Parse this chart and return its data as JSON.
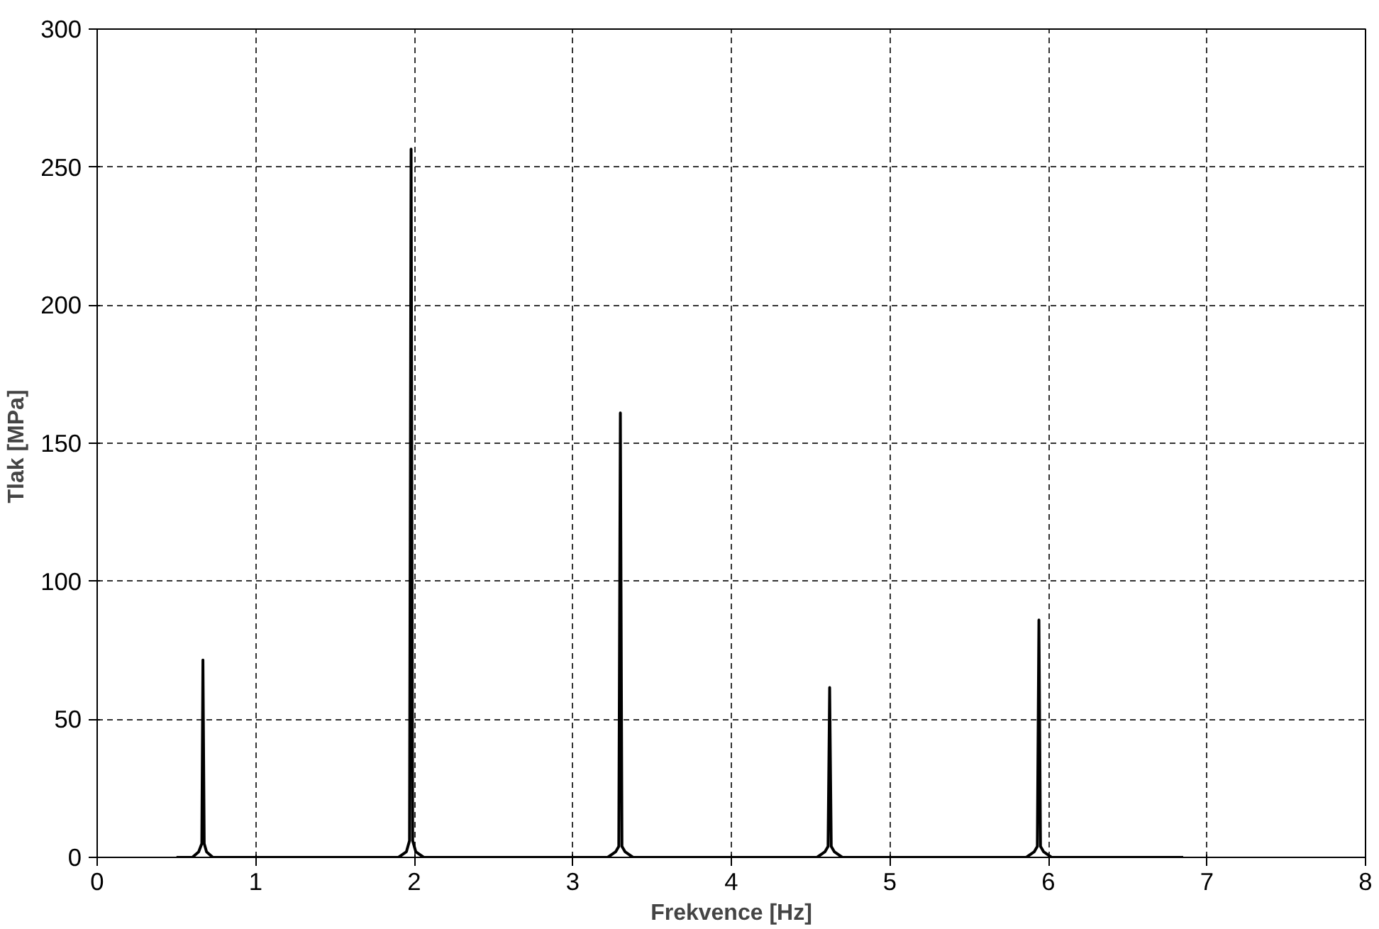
{
  "chart_data": {
    "type": "line",
    "xlabel": "Frekvence [Hz]",
    "ylabel": "Tlak  [MPa]",
    "x": [
      0.5,
      0.6,
      0.64,
      0.66,
      0.667,
      0.675,
      0.69,
      0.73,
      1.9,
      1.95,
      1.97,
      1.98,
      1.99,
      2.01,
      2.06,
      3.22,
      3.27,
      3.29,
      3.3,
      3.31,
      3.33,
      3.38,
      4.54,
      4.59,
      4.61,
      4.62,
      4.63,
      4.65,
      4.7,
      5.86,
      5.91,
      5.93,
      5.94,
      5.95,
      5.97,
      6.02,
      6.85
    ],
    "series": [
      {
        "color": "#000000",
        "values": [
          0,
          0,
          2,
          5,
          71.5,
          5,
          2,
          0,
          0,
          2,
          6,
          256.5,
          6,
          2,
          0,
          0,
          2,
          4,
          161,
          4,
          2,
          0,
          0,
          2,
          4,
          61.5,
          4,
          2,
          0,
          0,
          2,
          4,
          86,
          4,
          2,
          0,
          0
        ]
      }
    ],
    "xlim": [
      0,
      8
    ],
    "xticks": [
      0,
      1,
      2,
      3,
      4,
      5,
      6,
      7,
      8
    ],
    "ylim": [
      0,
      300
    ],
    "yticks": [
      0,
      50,
      100,
      150,
      200,
      250,
      300
    ],
    "grid": true,
    "marker": "none",
    "line_style": "solid"
  }
}
